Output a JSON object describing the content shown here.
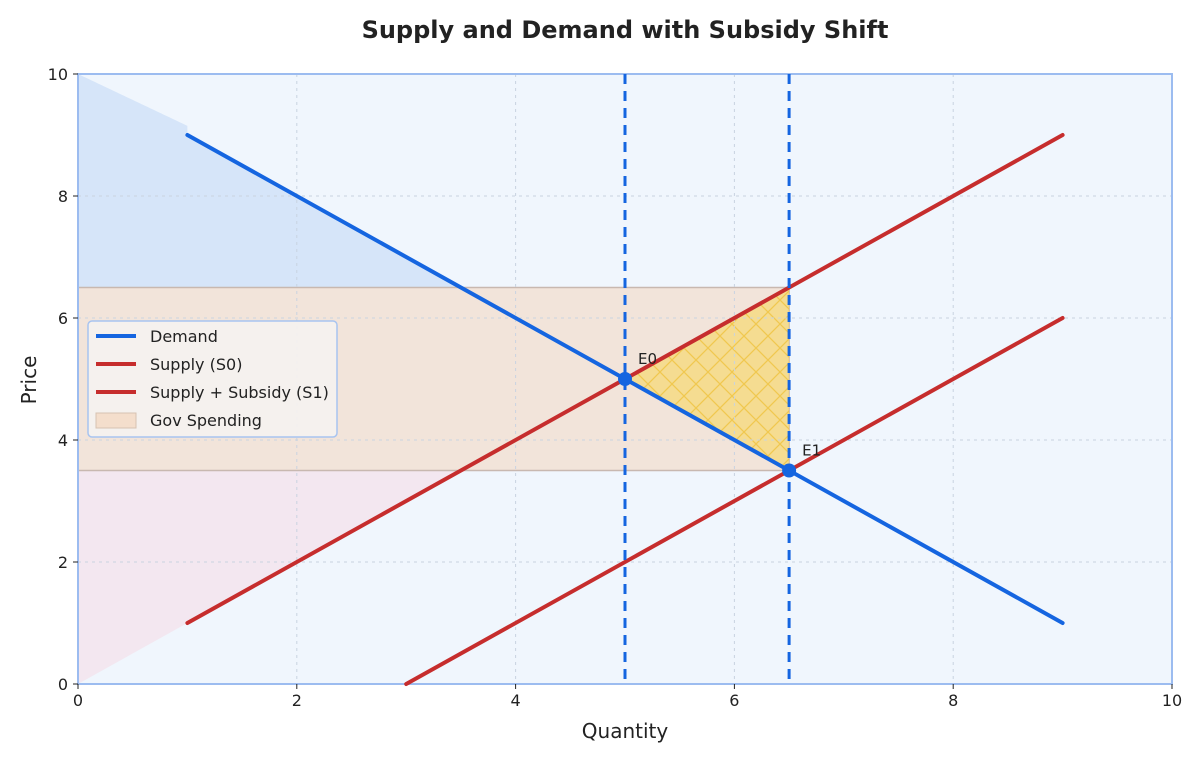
{
  "chart_data": {
    "type": "line",
    "title": "Supply and Demand with Subsidy Shift",
    "xlabel": "Quantity",
    "ylabel": "Price",
    "xlim": [
      0,
      10
    ],
    "ylim": [
      0,
      10
    ],
    "xticks": [
      0,
      2,
      4,
      6,
      8,
      10
    ],
    "yticks": [
      0,
      2,
      4,
      6,
      8,
      10
    ],
    "grid": true,
    "legend_position": "center-left",
    "series": [
      {
        "name": "Demand",
        "color": "#1565e0",
        "x": [
          1,
          9
        ],
        "y": [
          9,
          1
        ]
      },
      {
        "name": "Supply (S0)",
        "color": "#c62d2d",
        "x": [
          1,
          9
        ],
        "y": [
          1,
          9
        ]
      },
      {
        "name": "Supply + Subsidy (S1)",
        "color": "#c62d2d",
        "x": [
          3,
          9
        ],
        "y": [
          0,
          6
        ]
      }
    ],
    "shaded_regions": [
      {
        "name": "Gov Spending",
        "x": [
          0,
          6.5
        ],
        "y": [
          3.5,
          6.5
        ],
        "color": "#f4c7a1"
      }
    ],
    "vertical_lines": [
      {
        "x": 5,
        "color": "#1565e0",
        "style": "dashed"
      },
      {
        "x": 6.5,
        "color": "#1565e0",
        "style": "dashed"
      }
    ],
    "equilibria": [
      {
        "label": "E0",
        "x": 5,
        "y": 5
      },
      {
        "label": "E1",
        "x": 6.5,
        "y": 3.5
      }
    ]
  }
}
